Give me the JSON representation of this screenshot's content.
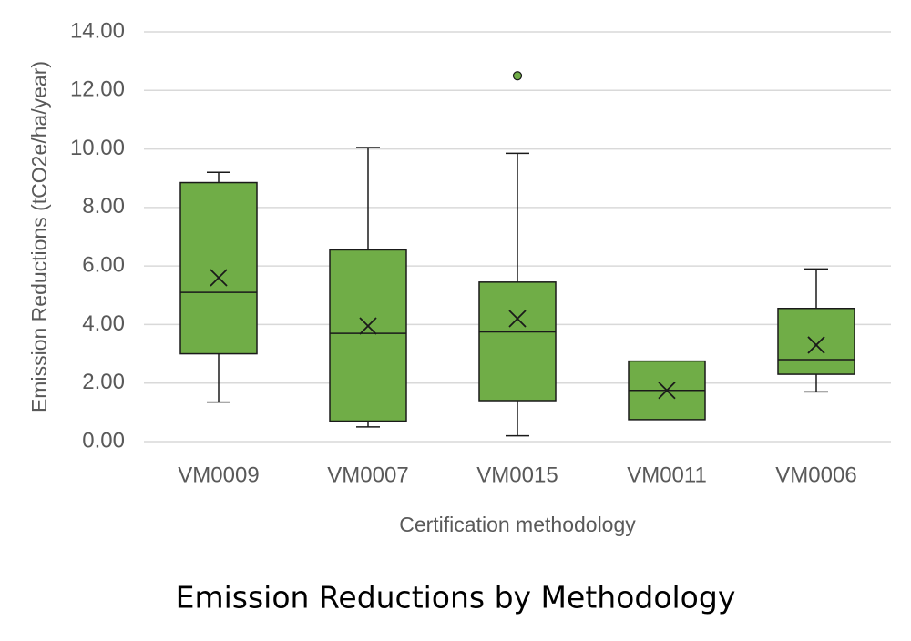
{
  "chart_data": {
    "type": "box",
    "title": "Emission Reductions by Methodology",
    "xlabel": "Certification methodology",
    "ylabel": "Emission Reductions (tCO2e/ha/year)",
    "ylim": [
      0,
      14
    ],
    "y_ticks": [
      "0.00",
      "2.00",
      "4.00",
      "6.00",
      "8.00",
      "10.00",
      "12.00",
      "14.00"
    ],
    "y_tick_values": [
      0,
      2,
      4,
      6,
      8,
      10,
      12,
      14
    ],
    "grid": true,
    "colors": {
      "box_fill": "#70ad47",
      "line": "#1a1a1a",
      "grid": "#d9d9d9"
    },
    "categories": [
      "VM0009",
      "VM0007",
      "VM0015",
      "VM0011",
      "VM0006"
    ],
    "boxes": [
      {
        "category": "VM0009",
        "min": 1.35,
        "q1": 3.0,
        "median": 5.1,
        "q3": 8.85,
        "max": 9.2,
        "mean": 5.6,
        "outliers": []
      },
      {
        "category": "VM0007",
        "min": 0.5,
        "q1": 0.7,
        "median": 3.7,
        "q3": 6.55,
        "max": 10.05,
        "mean": 3.95,
        "outliers": []
      },
      {
        "category": "VM0015",
        "min": 0.2,
        "q1": 1.4,
        "median": 3.75,
        "q3": 5.45,
        "max": 9.85,
        "mean": 4.2,
        "outliers": [
          12.5
        ]
      },
      {
        "category": "VM0011",
        "min": 0.75,
        "q1": 0.75,
        "median": 1.75,
        "q3": 2.75,
        "max": 2.75,
        "mean": 1.75,
        "outliers": []
      },
      {
        "category": "VM0006",
        "min": 1.7,
        "q1": 2.3,
        "median": 2.8,
        "q3": 4.55,
        "max": 5.9,
        "mean": 3.3,
        "outliers": []
      }
    ]
  }
}
